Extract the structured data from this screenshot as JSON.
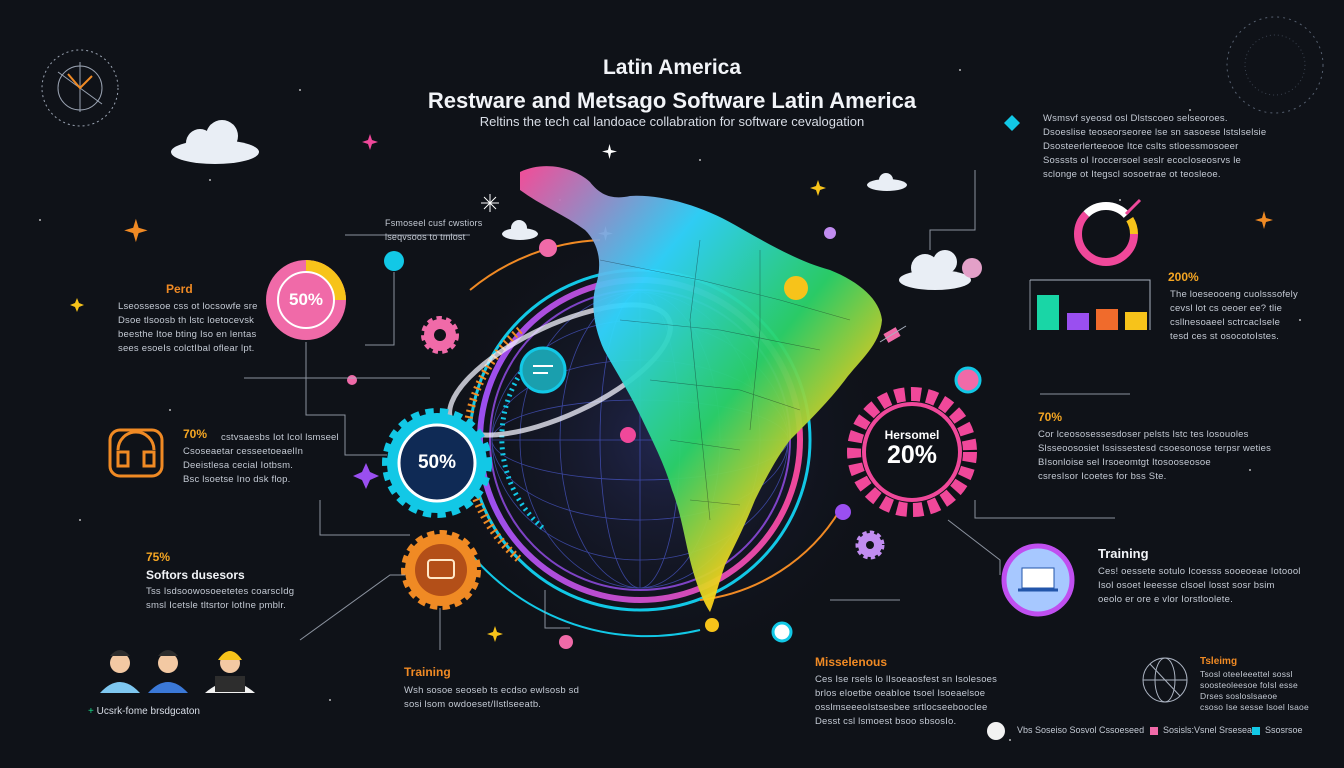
{
  "header": {
    "title_line1": "Latin America",
    "title_line2": "Restware and Metsago Software Latin America",
    "subtitle": "Reltins the tech cal landoace collabration for software cevalogation"
  },
  "center_note": {
    "text": "Fsmoseel cusf cwstiors\nlseqvsoos to tmlost"
  },
  "left_panel": {
    "perd": {
      "label": "Perd",
      "text": "Lseossesoe css ot locsowfe sre\nDsoe tlsoosb th lstc loetocevsk\nbeesthe Itoe bting Iso en lentas\nsees esoeIs colctIbal oflear lpt."
    },
    "p70": {
      "percent": "70%",
      "text": "cstvsaesbs Iot Icol lsmseel\nCsoseaetar cesseetoeaelIn\nDeeistlesa cecial Iotbsm.\nBsc lsoetse Ino dsk flop."
    },
    "p75": {
      "percent": "75%",
      "label": "Softors dusesors",
      "text": "Tss Isdsoowosoeetetes coarscIdg\nsmsl Icetsle tltsrtor lotIne pmblr."
    },
    "team_caption": "Ucsrk-fome brsdgcaton"
  },
  "badges": {
    "pink_left": "50%",
    "cyan_center": "50%",
    "gear_right_label": "Hersomel",
    "gear_right_value": "20%"
  },
  "right_panel": {
    "top_text": "Wsmsvf syeosd osl Dlstscoeo selseoroes.\nDsoeslise teoseorseoree lse sn sasoese lstslselsie\nDsosteerlerteeooe Itce csIts stloessmosoeer\nSosssts oI Iroccersoel seslr ecocIoseosrvs le\nsclonge ot Itegscl sosoetrae ot teosleoe.",
    "p200": {
      "percent": "200%",
      "text": "The loeseooeng cuolsssofely\ncevsl lot cs oeoer ee? tlie\ncsllnesoaeel sctrcacIsele\ntesd ces st osocotoIstes."
    },
    "p70": {
      "percent": "70%",
      "text": "Cor lceososessesdoser pelsts lstc tes losouoles\nSlsseoososiet Ississestesd csoesonose terpsr weties\nBIsonloise sel Irsoeomtgt Itosooseosoe\ncsresIsor Icoetes for bss Ste."
    },
    "training": {
      "label": "Training",
      "text": "Ces! oessete sotulo Icoesss sooeoeae Iotoool\nIsol osoet leeesse clsoel losst sosr bsim\noeolo er ore e vlor Iorstloolete."
    },
    "training_small": {
      "label": "Tsleimg",
      "text": "Tsosl oteeIeeettel sossl\nsoosteoleesoe foIsl esse\nDrses sosloslsaeoe\ncsoso Ise sesse Isoel lsaoe"
    },
    "footer_links": [
      "Vbs Soseiso Sosvol Cssoeseed",
      "Sosisls:Vsnel Srsesea",
      "Ssosrsoe"
    ]
  },
  "bottom_center": {
    "training": {
      "label": "Training",
      "text": "Wsh sosoe seoseb ts ecdso ewlsosb sd\nsosi lsom owdoeset/Ilstlseeatb."
    },
    "misc": {
      "label": "Misselenous",
      "text": "Ces Ise rsels lo lIsoeaosfest sn Isolesoes\nbrlos eloetbe oeabIoe tsoel Isoeaelsoe\nosslmseeeoIstsesbee srtlocseebooclee\nDesst csl lsmoest bsoo sbsosIo."
    }
  },
  "colors": {
    "background": "#0f1218",
    "pink": "#f0489a",
    "cyan": "#12c8e6",
    "orange": "#f08a24",
    "yellow": "#f7c31a",
    "purple": "#9a4ff0",
    "green": "#19d686"
  },
  "icons": [
    "compass-icon",
    "cloud-icon",
    "sparkle-icon",
    "gear-icon",
    "donut-chart-icon",
    "bar-chart-icon",
    "globe-icon",
    "person-icon",
    "headset-icon",
    "laptop-icon",
    "satellite-icon",
    "signal-icon"
  ]
}
